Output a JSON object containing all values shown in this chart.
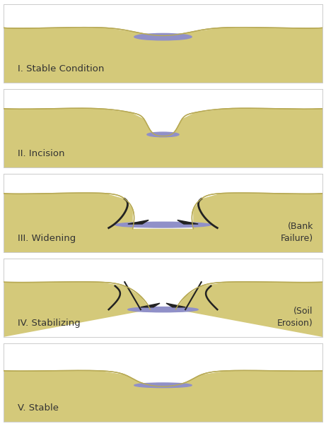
{
  "background_color": "#ffffff",
  "land_color": "#d4c97a",
  "land_edge_color": "#b8aa55",
  "water_color": "#9090c8",
  "border_color": "#cccccc",
  "bank_color": "#222222",
  "text_color": "#333333",
  "panels": [
    {
      "label": "I. Stable Condition",
      "type": "stable_shallow",
      "side_note": null
    },
    {
      "label": "II. Incision",
      "type": "incision",
      "side_note": null
    },
    {
      "label": "III. Widening",
      "type": "widening",
      "side_note": "(Bank\nFailure)"
    },
    {
      "label": "IV. Stabilizing",
      "type": "stabilizing",
      "side_note": "(Soil\nErosion)"
    },
    {
      "label": "V. Stable",
      "type": "stable_wide",
      "side_note": null
    }
  ],
  "fig_width": 4.61,
  "fig_height": 6.03,
  "dpi": 100
}
